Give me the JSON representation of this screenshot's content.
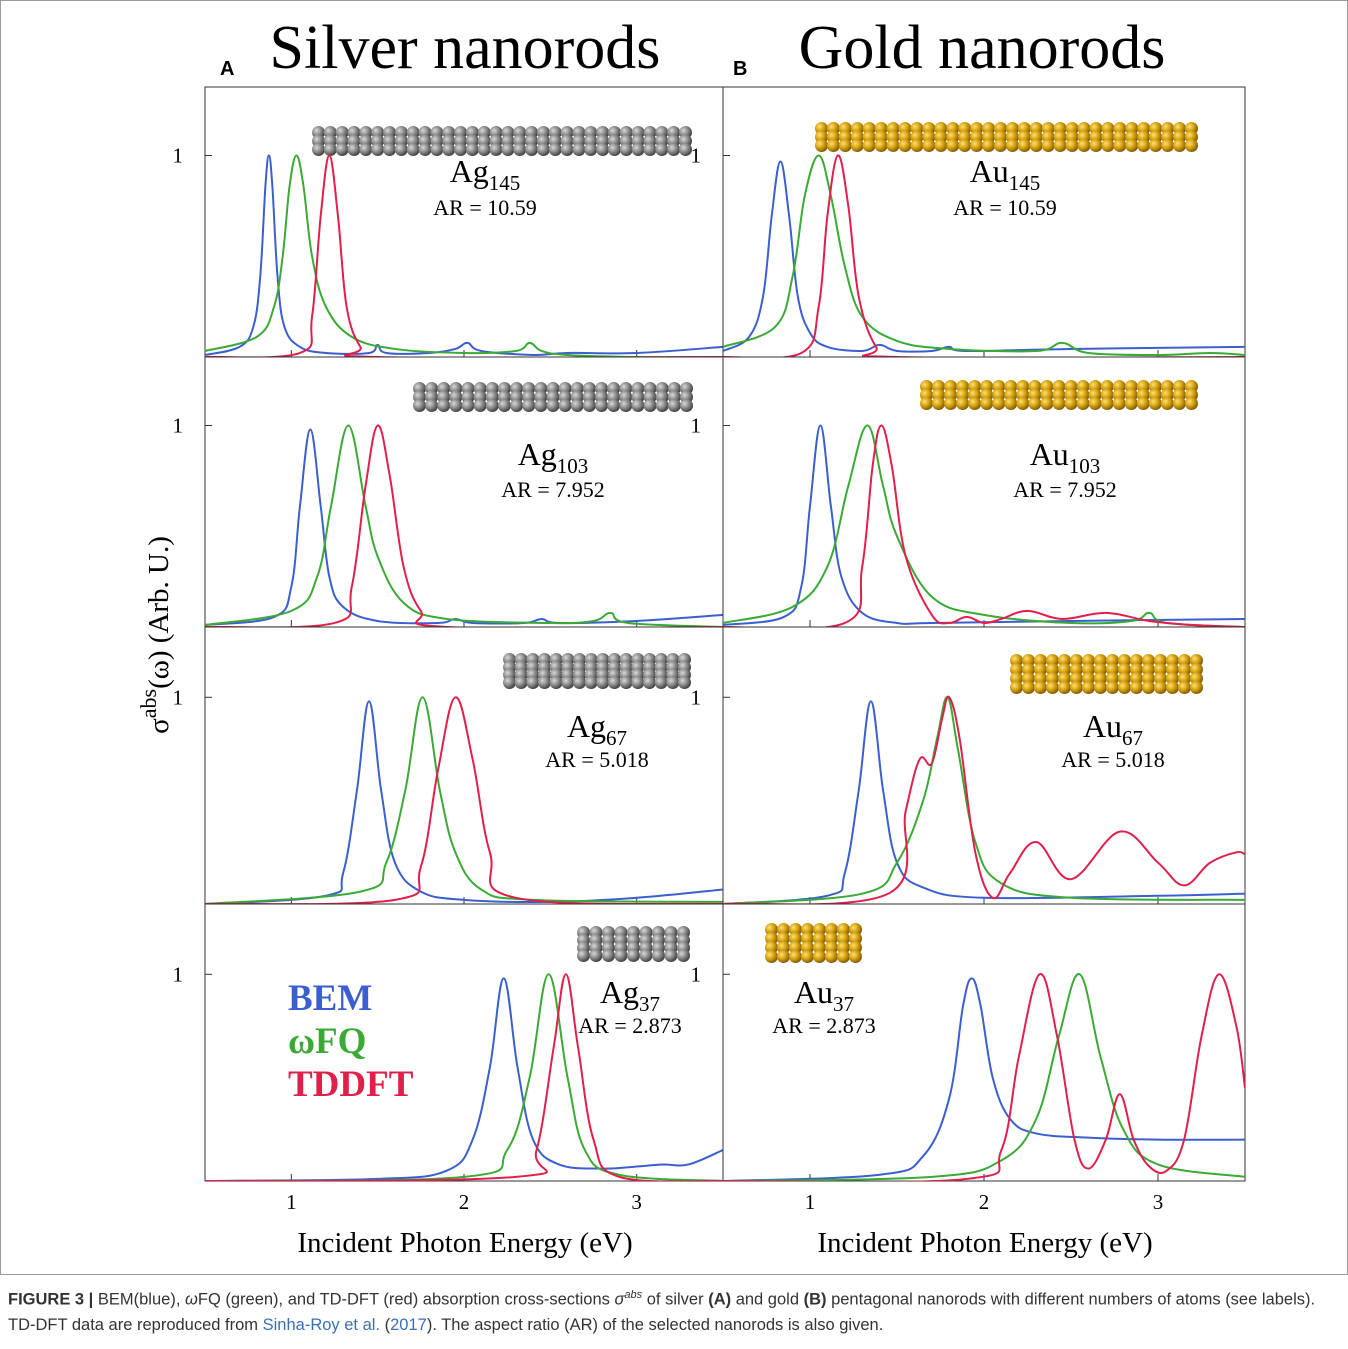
{
  "columns": [
    {
      "letter": "A",
      "title": "Silver nanorods",
      "x_label": "Incident Photon Energy (eV)"
    },
    {
      "letter": "B",
      "title": "Gold nanorods",
      "x_label": "Incident Photon Energy (eV)"
    }
  ],
  "y_label": {
    "symbol": "σ",
    "superscript": "abs",
    "rest": "(ω) (Arb. U.)"
  },
  "caption": [
    {
      "text": "FIGURE 3 |",
      "style": "bold"
    },
    {
      "text": " BEM(blue), ",
      "style": "plain"
    },
    {
      "text": "ω",
      "style": "italic"
    },
    {
      "text": "FQ (green), and TD-DFT (red) absorption cross-sections ",
      "style": "plain"
    },
    {
      "text": "σ",
      "style": "italic"
    },
    {
      "text": "abs",
      "style": "sup"
    },
    {
      "text": " of silver ",
      "style": "plain"
    },
    {
      "text": "(A)",
      "style": "bold"
    },
    {
      "text": " and gold ",
      "style": "plain"
    },
    {
      "text": "(B)",
      "style": "bold"
    },
    {
      "text": " pentagonal nanorods with different numbers of atoms (see labels). TD-DFT data are reproduced from ",
      "style": "plain"
    },
    {
      "text": "Sinha-Roy et al.",
      "style": "link"
    },
    {
      "text": " (",
      "style": "plain"
    },
    {
      "text": "2017",
      "style": "link"
    },
    {
      "text": "). The aspect ratio (AR) of the selected nanorods is also given.",
      "style": "plain"
    }
  ],
  "chart_data": [
    {
      "type": "line",
      "label": {
        "element": "Ag",
        "count": "145"
      },
      "aspect_ratio": "AR = 10.59",
      "xlim": [
        0.5,
        3.5
      ],
      "ylim": [
        0,
        1.34
      ],
      "xticks": [
        1,
        2,
        3
      ],
      "yticks": [
        1
      ],
      "series": [
        {
          "color": "#3b5fcf",
          "x": [
            0.5,
            0.7,
            0.78,
            0.82,
            0.85,
            0.87,
            0.89,
            0.92,
            0.96,
            1.05,
            1.2,
            1.45,
            1.5,
            1.55,
            1.8,
            1.95,
            2.02,
            2.1,
            2.4,
            2.6,
            3.0,
            3.5
          ],
          "values": [
            0.01,
            0.05,
            0.15,
            0.4,
            0.85,
            1.0,
            0.85,
            0.4,
            0.15,
            0.05,
            0.02,
            0.02,
            0.06,
            0.02,
            0.02,
            0.04,
            0.07,
            0.03,
            0.01,
            0.02,
            0.02,
            0.05
          ]
        },
        {
          "color": "#3aaa35",
          "x": [
            0.5,
            0.8,
            0.9,
            0.95,
            0.99,
            1.03,
            1.07,
            1.12,
            1.2,
            1.35,
            1.6,
            2.0,
            2.3,
            2.38,
            2.45,
            2.6,
            3.0,
            3.5
          ],
          "values": [
            0.03,
            0.1,
            0.25,
            0.5,
            0.85,
            1.0,
            0.85,
            0.5,
            0.25,
            0.1,
            0.04,
            0.02,
            0.03,
            0.07,
            0.03,
            0.01,
            0.0,
            0.0
          ]
        },
        {
          "color": "#e0204a",
          "x": [
            0.5,
            1.05,
            1.12,
            1.17,
            1.22,
            1.27,
            1.32,
            1.4,
            1.5,
            3.5
          ],
          "values": [
            0,
            0.02,
            0.2,
            0.7,
            1.0,
            0.7,
            0.25,
            0.05,
            0,
            0
          ]
        }
      ]
    },
    {
      "type": "line",
      "label": {
        "element": "Au",
        "count": "145"
      },
      "aspect_ratio": "AR = 10.59",
      "xlim": [
        0.5,
        3.5
      ],
      "ylim": [
        0,
        1.34
      ],
      "xticks": [
        1,
        2,
        3
      ],
      "yticks": [
        1
      ],
      "series": [
        {
          "color": "#3b5fcf",
          "x": [
            0.5,
            0.65,
            0.73,
            0.78,
            0.83,
            0.88,
            0.93,
            1.0,
            1.1,
            1.3,
            1.4,
            1.5,
            1.7,
            1.8,
            1.9,
            2.5,
            3.5
          ],
          "values": [
            0.03,
            0.1,
            0.3,
            0.7,
            0.97,
            0.7,
            0.3,
            0.12,
            0.05,
            0.03,
            0.06,
            0.03,
            0.03,
            0.05,
            0.03,
            0.04,
            0.05
          ]
        },
        {
          "color": "#3aaa35",
          "x": [
            0.5,
            0.8,
            0.9,
            0.97,
            1.05,
            1.12,
            1.2,
            1.3,
            1.5,
            1.8,
            2.3,
            2.45,
            2.6,
            3.0,
            3.3,
            3.5
          ],
          "values": [
            0.05,
            0.15,
            0.4,
            0.8,
            1.0,
            0.8,
            0.45,
            0.2,
            0.08,
            0.04,
            0.03,
            0.07,
            0.02,
            0.01,
            0.02,
            0.01
          ]
        },
        {
          "color": "#e0204a",
          "x": [
            0.5,
            0.95,
            1.05,
            1.1,
            1.16,
            1.22,
            1.28,
            1.38,
            1.5,
            3.5
          ],
          "values": [
            0,
            0.02,
            0.25,
            0.7,
            1.0,
            0.75,
            0.3,
            0.05,
            0,
            0
          ]
        }
      ]
    },
    {
      "type": "line",
      "label": {
        "element": "Ag",
        "count": "103"
      },
      "aspect_ratio": "AR = 7.952",
      "xlim": [
        0.5,
        3.5
      ],
      "ylim": [
        0,
        1.34
      ],
      "xticks": [
        1,
        2,
        3
      ],
      "yticks": [
        1
      ],
      "series": [
        {
          "color": "#3b5fcf",
          "x": [
            0.5,
            0.9,
            1.0,
            1.05,
            1.11,
            1.17,
            1.22,
            1.3,
            1.5,
            1.85,
            1.95,
            2.05,
            2.35,
            2.45,
            2.55,
            3.0,
            3.5
          ],
          "values": [
            0.01,
            0.05,
            0.2,
            0.6,
            0.98,
            0.6,
            0.25,
            0.1,
            0.03,
            0.02,
            0.04,
            0.02,
            0.02,
            0.04,
            0.02,
            0.03,
            0.06
          ]
        },
        {
          "color": "#3aaa35",
          "x": [
            0.5,
            1.0,
            1.15,
            1.23,
            1.33,
            1.43,
            1.5,
            1.65,
            1.9,
            2.5,
            2.75,
            2.85,
            2.95,
            3.5
          ],
          "values": [
            0.01,
            0.08,
            0.25,
            0.6,
            1.0,
            0.6,
            0.35,
            0.12,
            0.04,
            0.02,
            0.03,
            0.07,
            0.02,
            0.0
          ]
        },
        {
          "color": "#e0204a",
          "x": [
            0.5,
            1.25,
            1.35,
            1.43,
            1.5,
            1.57,
            1.65,
            1.75,
            1.9,
            3.5
          ],
          "values": [
            0,
            0.02,
            0.2,
            0.7,
            1.0,
            0.75,
            0.3,
            0.08,
            0,
            0
          ]
        }
      ]
    },
    {
      "type": "line",
      "label": {
        "element": "Au",
        "count": "103"
      },
      "aspect_ratio": "AR = 7.952",
      "xlim": [
        0.5,
        3.5
      ],
      "ylim": [
        0,
        1.34
      ],
      "xticks": [
        1,
        2,
        3
      ],
      "yticks": [
        1
      ],
      "series": [
        {
          "color": "#3b5fcf",
          "x": [
            0.5,
            0.85,
            0.95,
            1.0,
            1.06,
            1.12,
            1.18,
            1.3,
            1.5,
            1.7,
            2.5,
            3.5
          ],
          "values": [
            0.01,
            0.05,
            0.2,
            0.6,
            1.0,
            0.6,
            0.25,
            0.07,
            0.02,
            0.02,
            0.03,
            0.04
          ]
        },
        {
          "color": "#3aaa35",
          "x": [
            0.5,
            0.9,
            1.1,
            1.22,
            1.33,
            1.42,
            1.5,
            1.7,
            2.0,
            2.5,
            2.85,
            2.95,
            3.05,
            3.5
          ],
          "values": [
            0.02,
            0.1,
            0.3,
            0.7,
            1.0,
            0.7,
            0.45,
            0.15,
            0.06,
            0.02,
            0.03,
            0.07,
            0.02,
            0.0
          ]
        },
        {
          "color": "#e0204a",
          "x": [
            0.5,
            1.2,
            1.3,
            1.36,
            1.41,
            1.47,
            1.55,
            1.7,
            1.8,
            1.9,
            2.0,
            2.1,
            2.25,
            2.45,
            2.7,
            2.95,
            3.2,
            3.5
          ],
          "values": [
            0,
            0.02,
            0.3,
            0.8,
            1.0,
            0.8,
            0.35,
            0.06,
            0.02,
            0.05,
            0.02,
            0.04,
            0.08,
            0.04,
            0.07,
            0.03,
            0.01,
            0.0
          ]
        }
      ]
    },
    {
      "type": "line",
      "label": {
        "element": "Ag",
        "count": "67"
      },
      "aspect_ratio": "AR = 5.018",
      "xlim": [
        0.5,
        3.5
      ],
      "ylim": [
        0,
        1.34
      ],
      "xticks": [
        1,
        2,
        3
      ],
      "yticks": [
        1
      ],
      "series": [
        {
          "color": "#3b5fcf",
          "x": [
            0.5,
            1.2,
            1.3,
            1.38,
            1.45,
            1.52,
            1.6,
            1.75,
            2.0,
            2.5,
            3.0,
            3.5
          ],
          "values": [
            0,
            0.04,
            0.15,
            0.55,
            0.98,
            0.55,
            0.2,
            0.06,
            0.02,
            0.01,
            0.03,
            0.07
          ]
        },
        {
          "color": "#3aaa35",
          "x": [
            0.5,
            1.4,
            1.55,
            1.66,
            1.76,
            1.86,
            1.95,
            2.1,
            2.4,
            3.5
          ],
          "values": [
            0,
            0.06,
            0.2,
            0.55,
            1.0,
            0.55,
            0.25,
            0.07,
            0.02,
            0.01
          ]
        },
        {
          "color": "#e0204a",
          "x": [
            0.5,
            1.6,
            1.75,
            1.85,
            1.95,
            2.05,
            2.15,
            2.3,
            3.5
          ],
          "values": [
            0,
            0.02,
            0.18,
            0.65,
            1.0,
            0.7,
            0.25,
            0.03,
            0
          ]
        }
      ]
    },
    {
      "type": "line",
      "label": {
        "element": "Au",
        "count": "67"
      },
      "aspect_ratio": "AR = 5.018",
      "xlim": [
        0.5,
        3.5
      ],
      "ylim": [
        0,
        1.34
      ],
      "xticks": [
        1,
        2,
        3
      ],
      "yticks": [
        1
      ],
      "series": [
        {
          "color": "#3b5fcf",
          "x": [
            0.5,
            1.1,
            1.2,
            1.28,
            1.35,
            1.42,
            1.5,
            1.65,
            2.0,
            3.0,
            3.5
          ],
          "values": [
            0,
            0.04,
            0.15,
            0.55,
            0.98,
            0.55,
            0.2,
            0.08,
            0.03,
            0.04,
            0.05
          ]
        },
        {
          "color": "#3aaa35",
          "x": [
            0.5,
            1.3,
            1.5,
            1.65,
            1.73,
            1.79,
            1.85,
            1.95,
            2.1,
            2.5,
            3.5
          ],
          "values": [
            0,
            0.05,
            0.2,
            0.5,
            0.8,
            1.0,
            0.75,
            0.3,
            0.1,
            0.03,
            0.02
          ]
        },
        {
          "color": "#e0204a",
          "x": [
            0.5,
            1.45,
            1.55,
            1.63,
            1.7,
            1.76,
            1.8,
            1.86,
            1.95,
            2.05,
            2.15,
            2.3,
            2.5,
            2.78,
            3.0,
            3.15,
            3.3,
            3.45,
            3.5
          ],
          "values": [
            0,
            0.05,
            0.45,
            0.7,
            0.68,
            0.9,
            1.0,
            0.8,
            0.25,
            0.03,
            0.15,
            0.3,
            0.12,
            0.35,
            0.2,
            0.09,
            0.2,
            0.25,
            0.24
          ]
        }
      ]
    },
    {
      "type": "line",
      "label": {
        "element": "Ag",
        "count": "37"
      },
      "aspect_ratio": "AR = 2.873",
      "xlim": [
        0.5,
        3.5
      ],
      "ylim": [
        0,
        1.34
      ],
      "xticks": [
        1,
        2,
        3
      ],
      "yticks": [
        1
      ],
      "series": [
        {
          "name": "BEM",
          "color": "#3b5fcf",
          "x": [
            0.5,
            1.5,
            1.9,
            2.05,
            2.15,
            2.23,
            2.31,
            2.4,
            2.55,
            2.8,
            3.0,
            3.15,
            3.3,
            3.5
          ],
          "values": [
            0,
            0.01,
            0.05,
            0.2,
            0.55,
            0.98,
            0.55,
            0.2,
            0.08,
            0.06,
            0.07,
            0.08,
            0.08,
            0.15
          ]
        },
        {
          "name": "ωFQ",
          "color": "#3aaa35",
          "x": [
            0.5,
            2.0,
            2.25,
            2.38,
            2.49,
            2.6,
            2.7,
            2.9,
            3.5
          ],
          "values": [
            0,
            0.02,
            0.15,
            0.5,
            1.0,
            0.5,
            0.15,
            0.03,
            0
          ]
        },
        {
          "name": "TDDFT",
          "color": "#e0204a",
          "x": [
            0.5,
            2.3,
            2.42,
            2.52,
            2.59,
            2.66,
            2.75,
            2.9,
            3.5
          ],
          "values": [
            0,
            0.02,
            0.15,
            0.65,
            1.0,
            0.65,
            0.2,
            0.02,
            0
          ]
        }
      ]
    },
    {
      "type": "line",
      "label": {
        "element": "Au",
        "count": "37"
      },
      "aspect_ratio": "AR = 2.873",
      "xlim": [
        0.5,
        3.5
      ],
      "ylim": [
        0,
        1.34
      ],
      "xticks": [
        1,
        2,
        3
      ],
      "yticks": [
        1
      ],
      "series": [
        {
          "color": "#3b5fcf",
          "x": [
            0.5,
            1.4,
            1.65,
            1.8,
            1.88,
            1.93,
            1.98,
            2.05,
            2.15,
            2.3,
            2.6,
            3.0,
            3.5
          ],
          "values": [
            0,
            0.03,
            0.12,
            0.4,
            0.85,
            0.98,
            0.85,
            0.5,
            0.3,
            0.23,
            0.21,
            0.2,
            0.2
          ]
        },
        {
          "color": "#3aaa35",
          "x": [
            0.5,
            1.7,
            2.1,
            2.3,
            2.43,
            2.55,
            2.67,
            2.8,
            3.0,
            3.5
          ],
          "values": [
            0,
            0.02,
            0.1,
            0.3,
            0.7,
            1.0,
            0.6,
            0.25,
            0.08,
            0.02
          ]
        },
        {
          "color": "#e0204a",
          "x": [
            0.5,
            1.9,
            2.1,
            2.2,
            2.32,
            2.42,
            2.52,
            2.6,
            2.7,
            2.78,
            2.86,
            2.95,
            3.05,
            3.15,
            3.25,
            3.35,
            3.45,
            3.5
          ],
          "values": [
            0,
            0.01,
            0.15,
            0.6,
            1.0,
            0.7,
            0.2,
            0.06,
            0.2,
            0.42,
            0.2,
            0.07,
            0.05,
            0.2,
            0.7,
            1.0,
            0.75,
            0.45
          ]
        }
      ]
    }
  ]
}
